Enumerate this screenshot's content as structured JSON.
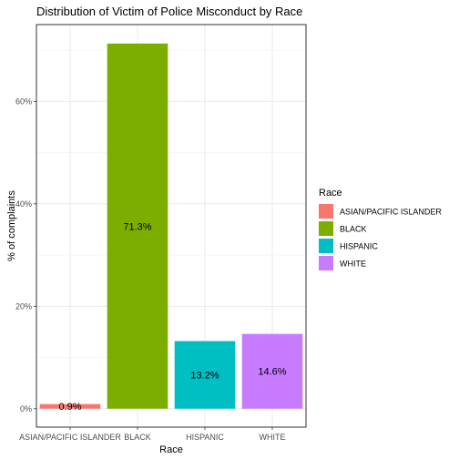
{
  "chart_data": {
    "type": "bar",
    "title": "Distribution of Victim of Police Misconduct by Race",
    "xlabel": "Race",
    "ylabel": "% of complaints",
    "categories": [
      "ASIAN/PACIFIC ISLANDER",
      "BLACK",
      "HISPANIC",
      "WHITE"
    ],
    "values": [
      0.9,
      71.3,
      13.2,
      14.6
    ],
    "data_labels": [
      "0.9%",
      "71.3%",
      "13.2%",
      "14.6%"
    ],
    "colors": [
      "#F8766D",
      "#7CAE00",
      "#00BFC4",
      "#C77CFF"
    ],
    "y_ticks": [
      0,
      20,
      40,
      60
    ],
    "y_tick_labels": [
      "0%",
      "20%",
      "40%",
      "60%"
    ],
    "ylim": [
      -3.6,
      75
    ],
    "grid": true,
    "legend": {
      "title": "Race",
      "position": "right",
      "entries": [
        "ASIAN/PACIFIC ISLANDER",
        "BLACK",
        "HISPANIC",
        "WHITE"
      ]
    }
  }
}
